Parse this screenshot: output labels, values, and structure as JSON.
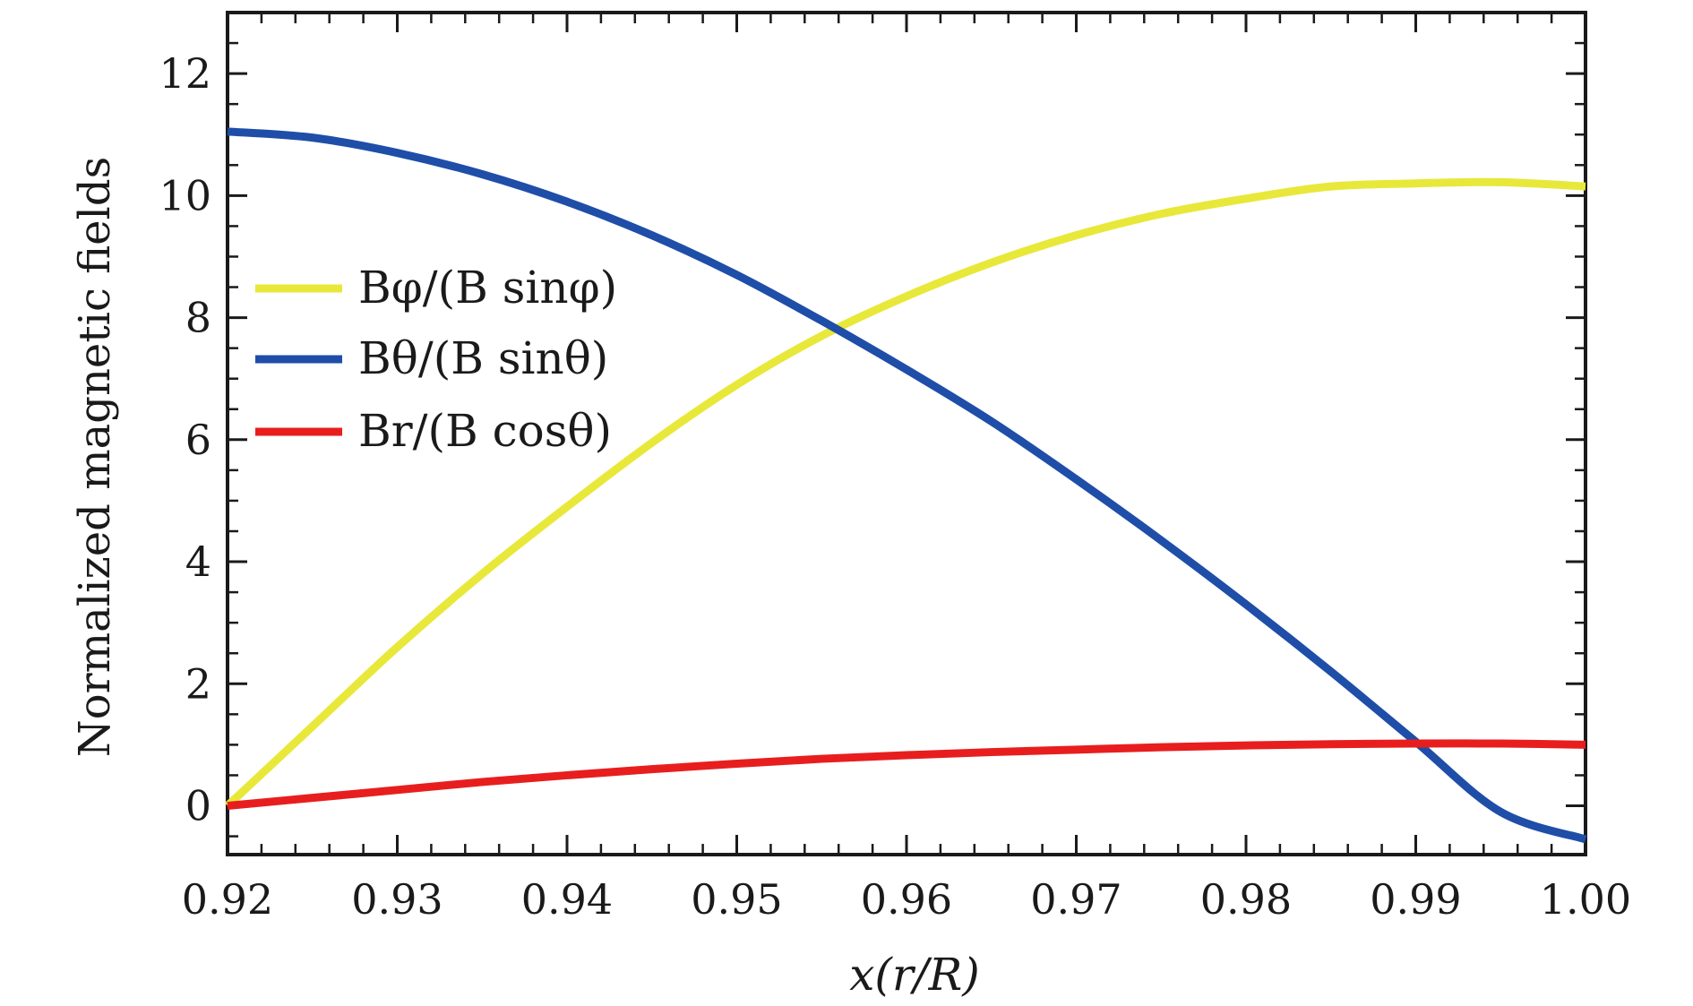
{
  "chart_data": {
    "type": "line",
    "title": "",
    "xlabel": "x(r/R)",
    "ylabel": "Normalized magnetic fields",
    "xlim": [
      0.92,
      1.0
    ],
    "ylim": [
      -0.8,
      13
    ],
    "grid": false,
    "legend_position": "middle-left",
    "x_ticks": [
      0.92,
      0.93,
      0.94,
      0.95,
      0.96,
      0.97,
      0.98,
      0.99,
      1.0
    ],
    "x_tick_labels": [
      "0.92",
      "0.93",
      "0.94",
      "0.95",
      "0.96",
      "0.97",
      "0.98",
      "0.99",
      "1.00"
    ],
    "y_ticks": [
      0,
      2,
      4,
      6,
      8,
      10,
      12
    ],
    "y_tick_labels": [
      "0",
      "2",
      "4",
      "6",
      "8",
      "10",
      "12"
    ],
    "series": [
      {
        "name": "Bφ/(B sinφ)",
        "color": "#e8e83a",
        "x": [
          0.92,
          0.925,
          0.93,
          0.935,
          0.94,
          0.945,
          0.95,
          0.955,
          0.96,
          0.965,
          0.97,
          0.975,
          0.98,
          0.985,
          0.99,
          0.995,
          1.0
        ],
        "y": [
          0.0,
          1.3,
          2.6,
          3.8,
          4.9,
          5.95,
          6.9,
          7.7,
          8.35,
          8.9,
          9.35,
          9.7,
          9.95,
          10.15,
          10.2,
          10.22,
          10.15
        ]
      },
      {
        "name": "Bθ/(B sinθ)",
        "color": "#1e4ea8",
        "x": [
          0.92,
          0.925,
          0.93,
          0.935,
          0.94,
          0.945,
          0.95,
          0.955,
          0.96,
          0.965,
          0.97,
          0.975,
          0.98,
          0.985,
          0.99,
          0.995,
          1.0
        ],
        "y": [
          11.05,
          10.95,
          10.7,
          10.35,
          9.9,
          9.35,
          8.7,
          7.95,
          7.15,
          6.3,
          5.35,
          4.35,
          3.3,
          2.2,
          1.05,
          -0.1,
          -0.55
        ]
      },
      {
        "name": "Br/(B cosθ)",
        "color": "#e81e1e",
        "x": [
          0.92,
          0.925,
          0.93,
          0.935,
          0.94,
          0.945,
          0.95,
          0.955,
          0.96,
          0.965,
          0.97,
          0.975,
          0.98,
          0.985,
          0.99,
          0.995,
          1.0
        ],
        "y": [
          0.0,
          0.13,
          0.26,
          0.39,
          0.5,
          0.6,
          0.69,
          0.77,
          0.83,
          0.88,
          0.92,
          0.96,
          0.99,
          1.01,
          1.02,
          1.02,
          1.0
        ]
      }
    ]
  }
}
